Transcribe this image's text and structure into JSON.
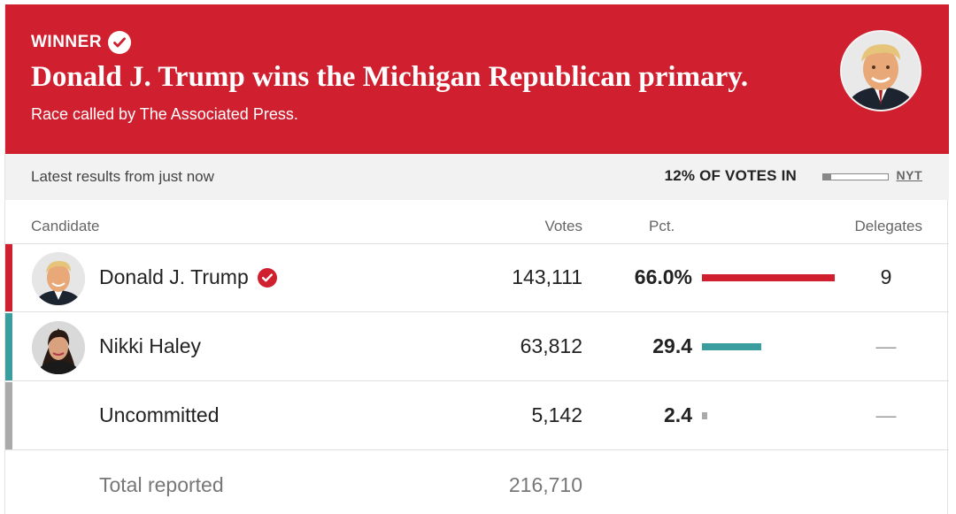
{
  "banner": {
    "winner_label": "WINNER",
    "headline": "Donald J. Trump wins the Michigan Republican primary.",
    "called_by": "Race called by The Associated Press.",
    "photo_icon": "trump-portrait-icon",
    "background_color": "#d0202f"
  },
  "status": {
    "latest": "Latest results from just now",
    "votes_in": "12% OF VOTES IN",
    "votes_in_fraction": 0.12,
    "source": "NYT"
  },
  "table": {
    "headers": {
      "candidate": "Candidate",
      "votes": "Votes",
      "pct": "Pct.",
      "delegates": "Delegates"
    },
    "rows": [
      {
        "name": "Donald J. Trump",
        "votes": "143,111",
        "pct": "66.0%",
        "pct_value": 66.0,
        "delegates": "9",
        "winner": true,
        "color": "#d0202f",
        "avatar_icon": "trump-avatar-icon"
      },
      {
        "name": "Nikki Haley",
        "votes": "63,812",
        "pct": "29.4",
        "pct_value": 29.4,
        "delegates": "—",
        "winner": false,
        "color": "#3a9e9e",
        "avatar_icon": "haley-avatar-icon"
      },
      {
        "name": "Uncommitted",
        "votes": "5,142",
        "pct": "2.4",
        "pct_value": 2.4,
        "delegates": "—",
        "winner": false,
        "color": "#aaaaaa"
      }
    ],
    "total": {
      "label": "Total reported",
      "votes": "216,710"
    }
  }
}
